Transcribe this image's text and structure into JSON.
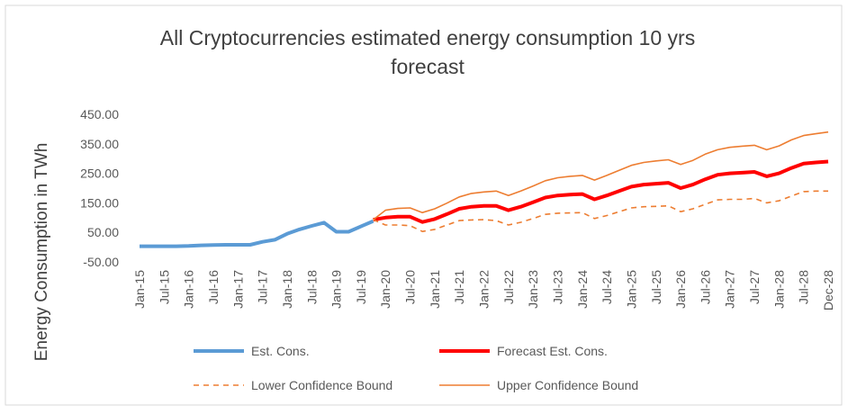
{
  "chart_data": {
    "type": "line",
    "title": "All Cryptocurrencies estimated energy consumption 10 yrs forecast",
    "y_label": "Energy Consumption in TWh",
    "categories": [
      "Jan-15",
      null,
      "Jul-15",
      null,
      "Jan-16",
      null,
      "Jul-16",
      null,
      "Jan-17",
      null,
      "Jul-17",
      null,
      "Jan-18",
      null,
      "Jul-18",
      null,
      "Jan-19",
      null,
      "Jul-19",
      null,
      "Jan-20",
      null,
      "Jul-20",
      null,
      "Jan-21",
      null,
      "Jul-21",
      null,
      "Jan-22",
      null,
      "Jul-22",
      null,
      "Jan-23",
      null,
      "Jul-23",
      null,
      "Jan-24",
      null,
      "Jul-24",
      null,
      "Jan-25",
      null,
      "Jul-25",
      null,
      "Jan-26",
      null,
      "Jul-26",
      null,
      "Jan-27",
      null,
      "Jul-27",
      null,
      "Jan-28",
      null,
      "Jul-28",
      null,
      "Dec-28"
    ],
    "series": [
      {
        "name": "Est. Cons.",
        "color": "#5b9bd5",
        "values": [
          3,
          3,
          3,
          3,
          4,
          6,
          7,
          8,
          8,
          8,
          18,
          25,
          45,
          60,
          72,
          83,
          52,
          52,
          70,
          88,
          null,
          null,
          null,
          null,
          null,
          null,
          null,
          null,
          null,
          null,
          null,
          null,
          null,
          null,
          null,
          null,
          null,
          null,
          null,
          null,
          null,
          null,
          null,
          null,
          null,
          null,
          null,
          null,
          null,
          null,
          null,
          null,
          null,
          null,
          null,
          null,
          null
        ]
      },
      {
        "name": "Forecast Est. Cons.",
        "color": "#ff0000",
        "values": [
          null,
          null,
          null,
          null,
          null,
          null,
          null,
          null,
          null,
          null,
          null,
          null,
          null,
          null,
          null,
          null,
          null,
          null,
          null,
          93,
          100,
          103,
          103,
          85,
          95,
          112,
          130,
          137,
          140,
          140,
          125,
          137,
          152,
          168,
          175,
          178,
          180,
          162,
          175,
          190,
          205,
          212,
          215,
          218,
          200,
          212,
          230,
          245,
          250,
          252,
          255,
          240,
          250,
          268,
          283,
          287,
          290
        ]
      },
      {
        "name": "Lower Confidence Bound",
        "color": "#ed7d31",
        "dashed": true,
        "values": [
          null,
          null,
          null,
          null,
          null,
          null,
          null,
          null,
          null,
          null,
          null,
          null,
          null,
          null,
          null,
          null,
          null,
          null,
          null,
          93,
          75,
          75,
          73,
          53,
          60,
          75,
          90,
          92,
          93,
          90,
          75,
          84,
          97,
          111,
          115,
          116,
          117,
          97,
          107,
          120,
          133,
          137,
          138,
          140,
          120,
          130,
          145,
          160,
          162,
          162,
          165,
          150,
          157,
          173,
          188,
          190,
          190
        ]
      },
      {
        "name": "Upper Confidence Bound",
        "color": "#ed7d31",
        "values": [
          null,
          null,
          null,
          null,
          null,
          null,
          null,
          null,
          null,
          null,
          null,
          null,
          null,
          null,
          null,
          null,
          null,
          null,
          null,
          93,
          125,
          131,
          133,
          117,
          130,
          149,
          170,
          182,
          187,
          190,
          175,
          190,
          207,
          225,
          235,
          240,
          243,
          227,
          243,
          260,
          277,
          287,
          292,
          296,
          280,
          294,
          315,
          330,
          338,
          342,
          345,
          330,
          343,
          363,
          378,
          384,
          390
        ]
      }
    ],
    "ylim": [
      -50,
      450
    ],
    "yticks": [
      {
        "value": -50,
        "label": "-50.00"
      },
      {
        "value": 50,
        "label": "50.00"
      },
      {
        "value": 150,
        "label": "150.00"
      },
      {
        "value": 250,
        "label": "250.00"
      },
      {
        "value": 350,
        "label": "350.00"
      },
      {
        "value": 450,
        "label": "450.00"
      }
    ],
    "grid": false,
    "legend": "bottom"
  }
}
